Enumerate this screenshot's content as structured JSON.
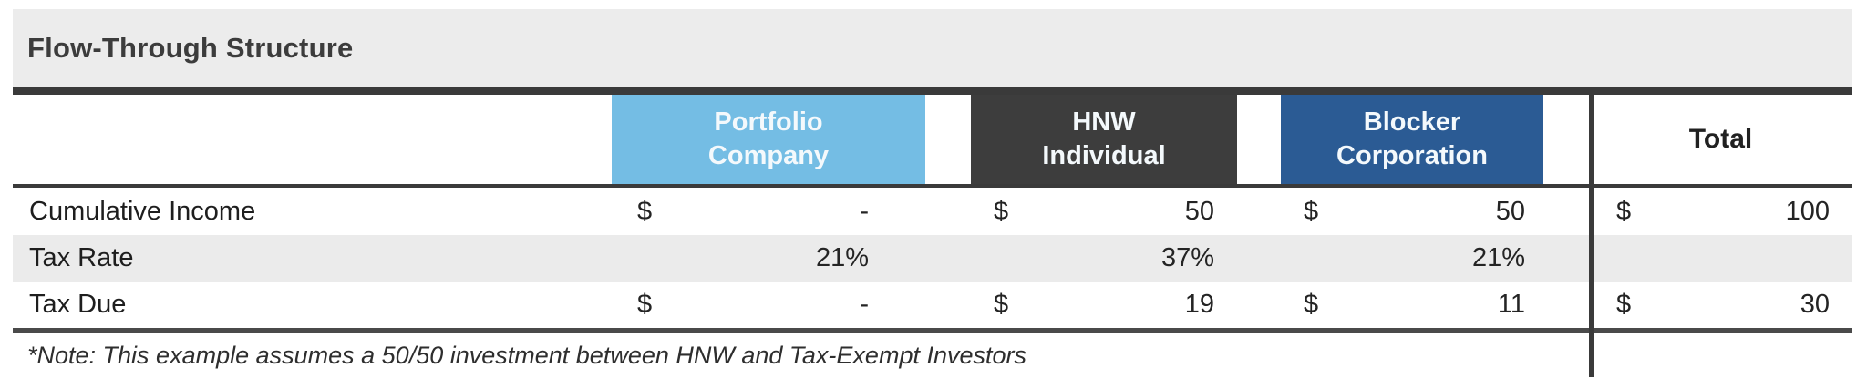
{
  "title": "Flow-Through Structure",
  "note": "*Note: This example assumes a 50/50 investment between HNW and Tax-Exempt Investors",
  "colors": {
    "title_band_bg": "#ECECEC",
    "rule_dark": "#3A3A3A",
    "stripe_row_bg": "#EBEBEB",
    "portfolio_header_bg": "#74BDE4",
    "hnw_header_bg": "#3D3D3D",
    "blocker_header_bg": "#2B5B94",
    "header_text": "#FFFFFF",
    "body_text": "#1F1F1F"
  },
  "table": {
    "columns": [
      {
        "id": "portfolio",
        "label": "Portfolio\nCompany"
      },
      {
        "id": "hnw",
        "label": "HNW\nIndividual"
      },
      {
        "id": "blocker",
        "label": "Blocker\nCorporation"
      },
      {
        "id": "total",
        "label": "Total"
      }
    ],
    "rows": [
      {
        "label": "Cumulative Income",
        "cells": [
          {
            "currency": "$",
            "value": "-"
          },
          {
            "currency": "$",
            "value": "50"
          },
          {
            "currency": "$",
            "value": "50"
          },
          {
            "currency": "$",
            "value": "100"
          }
        ]
      },
      {
        "label": "Tax Rate",
        "cells": [
          {
            "currency": "",
            "value": "21%"
          },
          {
            "currency": "",
            "value": "37%"
          },
          {
            "currency": "",
            "value": "21%"
          },
          {
            "currency": "",
            "value": ""
          }
        ]
      },
      {
        "label": "Tax Due",
        "cells": [
          {
            "currency": "$",
            "value": "-"
          },
          {
            "currency": "$",
            "value": "19"
          },
          {
            "currency": "$",
            "value": "11"
          },
          {
            "currency": "$",
            "value": "30"
          }
        ]
      }
    ]
  }
}
